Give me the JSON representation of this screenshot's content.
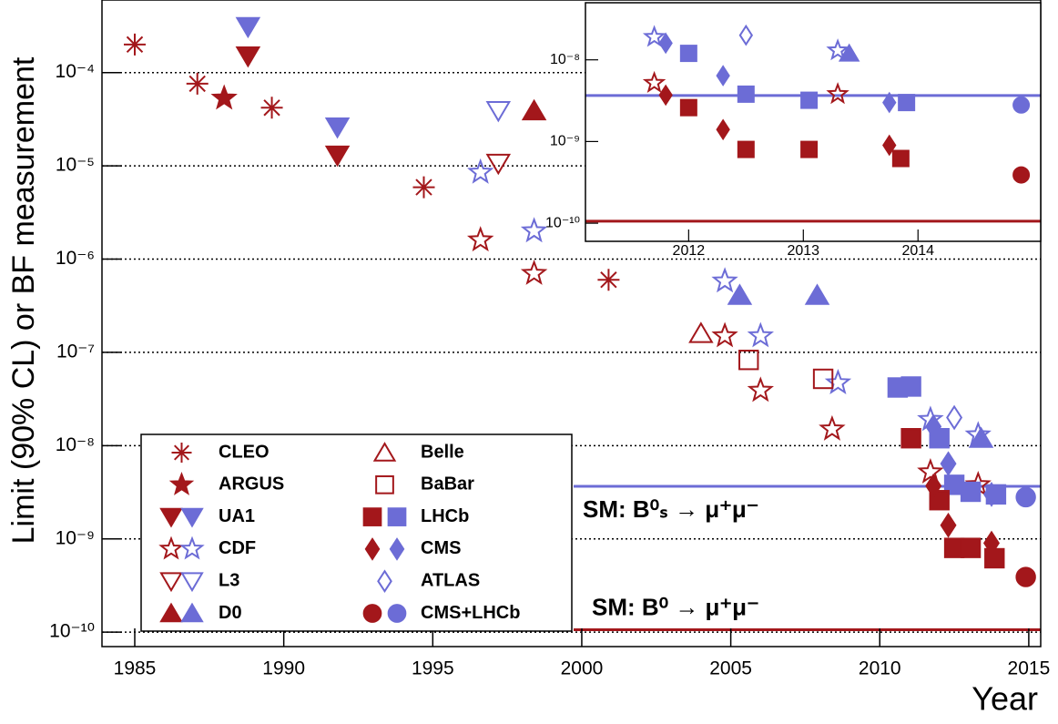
{
  "chart_data": {
    "type": "scatter",
    "x_label": "Year",
    "y_label": "Limit (90% CL) or BF measurement",
    "log_y": true,
    "grid": true,
    "xlim": [
      1983.9,
      2015.4
    ],
    "ylim": [
      7e-11,
      0.0006
    ],
    "xticks": [
      1985,
      1990,
      1995,
      2000,
      2005,
      2010,
      2015
    ],
    "yticks": [
      {
        "value": 1e-10,
        "label": "10⁻¹⁰"
      },
      {
        "value": 1e-09,
        "label": "10⁻⁹"
      },
      {
        "value": 1e-08,
        "label": "10⁻⁸"
      },
      {
        "value": 1e-07,
        "label": "10⁻⁷"
      },
      {
        "value": 1e-06,
        "label": "10⁻⁶"
      },
      {
        "value": 1e-05,
        "label": "10⁻⁵"
      },
      {
        "value": 0.0001,
        "label": "10⁻⁴"
      }
    ],
    "colors": {
      "bd": "#a3171b",
      "bs": "#6c6cd6"
    },
    "series": [
      {
        "name": "CLEO",
        "marker": "asterisk",
        "filled": false,
        "bd": {
          "x": [
            1985.0,
            1987.1,
            1989.6,
            1994.7,
            2000.9
          ],
          "values": [
            0.0002,
            7.6e-05,
            4.2e-05,
            5.9e-06,
            6e-07
          ]
        }
      },
      {
        "name": "ARGUS",
        "marker": "star",
        "filled": true,
        "bd": {
          "x": [
            1988.0
          ],
          "values": [
            5.3e-05
          ]
        }
      },
      {
        "name": "UA1",
        "marker": "tri-down",
        "filled": true,
        "bd": {
          "x": [
            1988.8,
            1991.8
          ],
          "values": [
            0.00015,
            1.3e-05
          ]
        },
        "bs": {
          "x": [
            1988.8,
            1991.8
          ],
          "values": [
            0.00031,
            2.6e-05
          ]
        }
      },
      {
        "name": "CDF",
        "marker": "star",
        "filled": false,
        "bd": {
          "x": [
            1996.6,
            1998.4,
            2004.8,
            2006.0,
            2008.4,
            2011.7,
            2013.3
          ],
          "values": [
            1.6e-06,
            7e-07,
            1.5e-07,
            3.9e-08,
            1.5e-08,
            5.2e-09,
            3.8e-09
          ]
        },
        "bs": {
          "x": [
            1996.6,
            1998.4,
            2004.8,
            2006.0,
            2008.6,
            2011.7,
            2013.3
          ],
          "values": [
            8.5e-06,
            2e-06,
            5.8e-07,
            1.5e-07,
            4.7e-08,
            1.9e-08,
            1.3e-08
          ]
        }
      },
      {
        "name": "L3",
        "marker": "tri-down",
        "filled": false,
        "bd": {
          "x": [
            1997.2
          ],
          "values": [
            1.06e-05
          ]
        },
        "bs": {
          "x": [
            1997.2
          ],
          "values": [
            3.9e-05
          ]
        }
      },
      {
        "name": "D0",
        "marker": "tri-up",
        "filled": true,
        "bd": {
          "x": [
            1998.4
          ],
          "values": [
            3.9e-05
          ]
        },
        "bs": {
          "x": [
            2005.3,
            2007.9,
            2013.4
          ],
          "values": [
            4.1e-07,
            4.1e-07,
            1.2e-08
          ]
        }
      },
      {
        "name": "Belle",
        "marker": "tri-up",
        "filled": false,
        "bd": {
          "x": [
            2004.0
          ],
          "values": [
            1.6e-07
          ]
        }
      },
      {
        "name": "BaBar",
        "marker": "square",
        "filled": false,
        "bd": {
          "x": [
            2005.6,
            2008.1
          ],
          "values": [
            8.3e-08,
            5.2e-08
          ]
        }
      },
      {
        "name": "LHCb",
        "marker": "square",
        "filled": true,
        "bd": {
          "x": [
            2011.05,
            2012.0,
            2012.5,
            2013.05,
            2013.85
          ],
          "values": [
            1.2e-08,
            2.6e-09,
            8e-10,
            8e-10,
            6.2e-10
          ]
        },
        "bs": {
          "x": [
            2010.6,
            2011.05,
            2012.0,
            2012.5,
            2013.05,
            2013.9
          ],
          "values": [
            4.2e-08,
            4.3e-08,
            1.2e-08,
            3.8e-09,
            3.2e-09,
            3e-09
          ]
        }
      },
      {
        "name": "CMS",
        "marker": "diamond",
        "filled": true,
        "bd": {
          "x": [
            2011.8,
            2012.3,
            2013.75
          ],
          "values": [
            3.7e-09,
            1.4e-09,
            9e-10
          ]
        },
        "bs": {
          "x": [
            2011.8,
            2012.3,
            2013.75
          ],
          "values": [
            1.6e-08,
            6.4e-09,
            3e-09
          ]
        }
      },
      {
        "name": "ATLAS",
        "marker": "diamond",
        "filled": false,
        "bs": {
          "x": [
            2012.5
          ],
          "values": [
            2e-08
          ]
        }
      },
      {
        "name": "CMS+LHCb",
        "marker": "circle",
        "filled": true,
        "bd": {
          "x": [
            2014.9
          ],
          "values": [
            3.9e-10
          ]
        },
        "bs": {
          "x": [
            2014.9
          ],
          "values": [
            2.8e-09
          ]
        }
      }
    ],
    "reference_lines": [
      {
        "label": "SM: B⁰ₛ → μ⁺μ⁻",
        "value": 3.66e-09,
        "meson": "bs"
      },
      {
        "label": "SM: B⁰ → μ⁺μ⁻",
        "value": 1.06e-10,
        "meson": "bd"
      }
    ],
    "inset": {
      "xlim": [
        2011.1,
        2015.07
      ],
      "ylim": [
        6e-11,
        5e-08
      ],
      "xticks": [
        2012,
        2013,
        2014
      ],
      "yticks": [
        {
          "value": 1e-10,
          "label": "10⁻¹⁰"
        },
        {
          "value": 1e-09,
          "label": "10⁻⁹"
        },
        {
          "value": 1e-08,
          "label": "10⁻⁸"
        }
      ]
    }
  }
}
